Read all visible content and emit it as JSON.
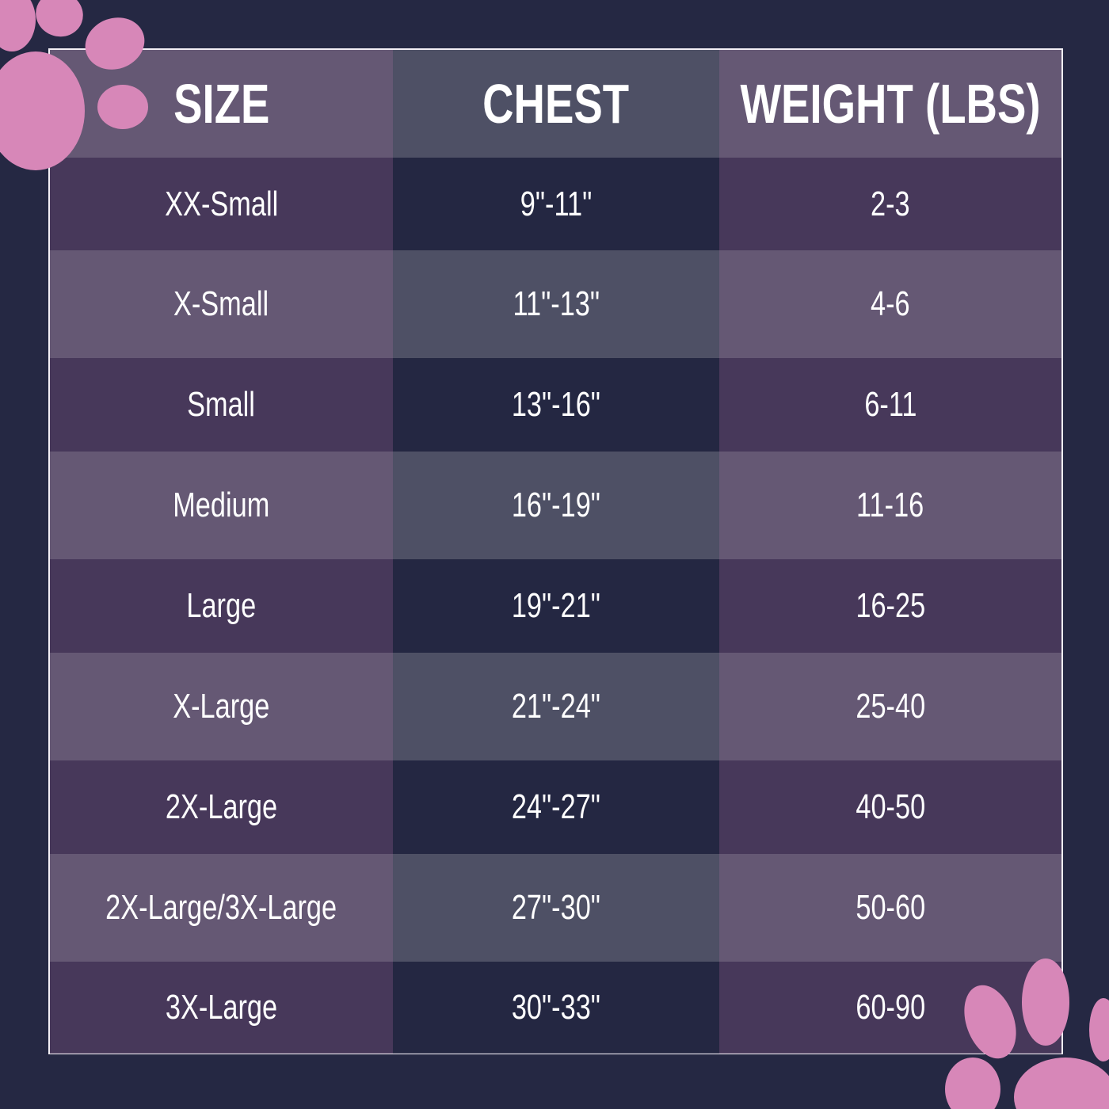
{
  "colors": {
    "background": "#252843",
    "paw": "#d787b8",
    "header_light": "#6b5d78",
    "header_mid": "#525468",
    "row_dark": "#4a3a5c",
    "row_navy": "#252843"
  },
  "headers": [
    "SIZE",
    "CHEST",
    "WEIGHT (LBS)"
  ],
  "rows": [
    [
      "XX-Small",
      "9\"-11\"",
      "2-3"
    ],
    [
      "X-Small",
      "11\"-13\"",
      "4-6"
    ],
    [
      "Small",
      "13\"-16\"",
      "6-11"
    ],
    [
      "Medium",
      "16\"-19\"",
      "11-16"
    ],
    [
      "Large",
      "19\"-21\"",
      "16-25"
    ],
    [
      "X-Large",
      "21\"-24\"",
      "25-40"
    ],
    [
      "2X-Large",
      "24\"-27\"",
      "40-50"
    ],
    [
      "2X-Large/3X-Large",
      "27\"-30\"",
      "50-60"
    ],
    [
      "3X-Large",
      "30\"-33\"",
      "60-90"
    ]
  ],
  "decorations": [
    "paw-print-icon",
    "paw-print-icon"
  ]
}
